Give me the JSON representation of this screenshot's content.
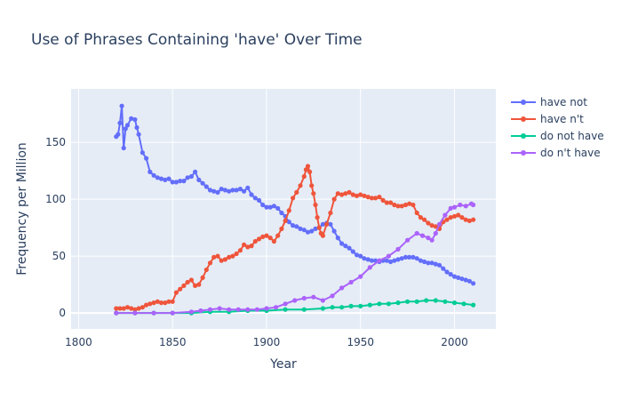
{
  "chart_data": {
    "type": "line",
    "title": "Use of Phrases Containing 'have' Over Time",
    "xlabel": "Year",
    "ylabel": "Frequency per Million",
    "xlim": [
      1796,
      2022
    ],
    "ylim": [
      -14,
      197
    ],
    "xticks": [
      1800,
      1850,
      1900,
      1950,
      2000
    ],
    "yticks": [
      0,
      50,
      100,
      150
    ],
    "legend_position": "top-right",
    "series": [
      {
        "name": "have not",
        "color": "#636efa",
        "x": [
          1820,
          1821,
          1822,
          1823,
          1824,
          1825,
          1826,
          1828,
          1830,
          1831,
          1832,
          1834,
          1836,
          1838,
          1840,
          1842,
          1844,
          1846,
          1848,
          1850,
          1852,
          1854,
          1856,
          1858,
          1860,
          1862,
          1864,
          1866,
          1868,
          1870,
          1872,
          1874,
          1876,
          1878,
          1880,
          1882,
          1884,
          1886,
          1888,
          1890,
          1892,
          1894,
          1896,
          1898,
          1900,
          1902,
          1904,
          1906,
          1908,
          1910,
          1912,
          1914,
          1916,
          1918,
          1920,
          1922,
          1924,
          1926,
          1928,
          1930,
          1932,
          1934,
          1936,
          1938,
          1940,
          1942,
          1944,
          1946,
          1948,
          1950,
          1952,
          1954,
          1956,
          1958,
          1960,
          1962,
          1964,
          1966,
          1968,
          1970,
          1972,
          1974,
          1976,
          1978,
          1980,
          1982,
          1984,
          1986,
          1988,
          1990,
          1992,
          1994,
          1996,
          1998,
          2000,
          2002,
          2004,
          2006,
          2008,
          2010
        ],
        "y": [
          155,
          157,
          167,
          182,
          145,
          162,
          165,
          171,
          170,
          163,
          157,
          141,
          136,
          124,
          121,
          119,
          118,
          117,
          118,
          115,
          115,
          116,
          116,
          119,
          120,
          124,
          117,
          114,
          111,
          108,
          107,
          106,
          109,
          108,
          107,
          108,
          108,
          109,
          107,
          110,
          104,
          101,
          99,
          95,
          93,
          93,
          94,
          92,
          88,
          85,
          80,
          77,
          76,
          74,
          73,
          71,
          72,
          74,
          75,
          78,
          79,
          78,
          72,
          66,
          61,
          59,
          57,
          54,
          51,
          50,
          48,
          47,
          46,
          46,
          45,
          46,
          46,
          45,
          46,
          47,
          48,
          49,
          49,
          49,
          48,
          46,
          45,
          44,
          44,
          43,
          42,
          39,
          36,
          34,
          32,
          31,
          30,
          29,
          28,
          26
        ]
      },
      {
        "name": "have n't",
        "color": "#ef553b",
        "x": [
          1820,
          1822,
          1824,
          1826,
          1828,
          1830,
          1832,
          1834,
          1836,
          1838,
          1840,
          1842,
          1844,
          1846,
          1848,
          1850,
          1852,
          1854,
          1856,
          1858,
          1860,
          1862,
          1864,
          1866,
          1868,
          1870,
          1872,
          1874,
          1876,
          1878,
          1880,
          1882,
          1884,
          1886,
          1888,
          1890,
          1892,
          1894,
          1896,
          1898,
          1900,
          1902,
          1904,
          1906,
          1908,
          1910,
          1912,
          1914,
          1916,
          1918,
          1920,
          1921,
          1922,
          1923,
          1924,
          1925,
          1926,
          1927,
          1928,
          1929,
          1930,
          1932,
          1934,
          1936,
          1938,
          1940,
          1942,
          1944,
          1946,
          1948,
          1950,
          1952,
          1954,
          1956,
          1958,
          1960,
          1962,
          1964,
          1966,
          1968,
          1970,
          1972,
          1974,
          1976,
          1978,
          1980,
          1982,
          1984,
          1986,
          1988,
          1990,
          1992,
          1994,
          1996,
          1998,
          2000,
          2002,
          2004,
          2006,
          2008,
          2010
        ],
        "y": [
          4,
          4,
          4,
          5,
          4,
          3,
          4,
          5,
          7,
          8,
          9,
          10,
          9,
          9,
          10,
          10,
          18,
          21,
          24,
          27,
          29,
          24,
          25,
          31,
          38,
          44,
          49,
          50,
          46,
          47,
          49,
          50,
          52,
          55,
          60,
          58,
          59,
          63,
          65,
          67,
          68,
          66,
          63,
          68,
          74,
          81,
          90,
          101,
          106,
          112,
          120,
          126,
          129,
          124,
          112,
          105,
          95,
          84,
          75,
          70,
          68,
          78,
          88,
          100,
          105,
          104,
          105,
          106,
          104,
          103,
          104,
          103,
          102,
          101,
          101,
          102,
          99,
          97,
          97,
          95,
          94,
          94,
          95,
          96,
          95,
          88,
          84,
          82,
          79,
          77,
          76,
          74,
          80,
          82,
          84,
          85,
          86,
          84,
          82,
          81,
          82
        ]
      },
      {
        "name": "do not have",
        "color": "#00cc96",
        "x": [
          1820,
          1830,
          1840,
          1850,
          1860,
          1870,
          1880,
          1890,
          1900,
          1910,
          1920,
          1930,
          1935,
          1940,
          1945,
          1950,
          1955,
          1960,
          1965,
          1970,
          1975,
          1980,
          1985,
          1990,
          1995,
          2000,
          2005,
          2010
        ],
        "y": [
          0,
          0,
          0,
          0,
          0,
          1,
          1,
          2,
          2,
          3,
          3,
          4,
          5,
          5,
          6,
          6,
          7,
          8,
          8,
          9,
          10,
          10,
          11,
          11,
          10,
          9,
          8,
          7
        ]
      },
      {
        "name": "do n't have",
        "color": "#ab63fa",
        "x": [
          1820,
          1830,
          1840,
          1850,
          1860,
          1865,
          1870,
          1875,
          1880,
          1885,
          1890,
          1895,
          1900,
          1905,
          1910,
          1915,
          1920,
          1925,
          1930,
          1935,
          1940,
          1945,
          1950,
          1955,
          1960,
          1965,
          1970,
          1975,
          1980,
          1983,
          1986,
          1988,
          1990,
          1992,
          1995,
          1998,
          2000,
          2003,
          2006,
          2009,
          2010
        ],
        "y": [
          0,
          0,
          0,
          0,
          1,
          2,
          3,
          4,
          3,
          3,
          3,
          3,
          4,
          5,
          8,
          11,
          13,
          14,
          11,
          15,
          22,
          27,
          32,
          40,
          46,
          50,
          56,
          64,
          70,
          68,
          66,
          64,
          70,
          78,
          86,
          92,
          93,
          95,
          94,
          96,
          95
        ]
      }
    ]
  }
}
